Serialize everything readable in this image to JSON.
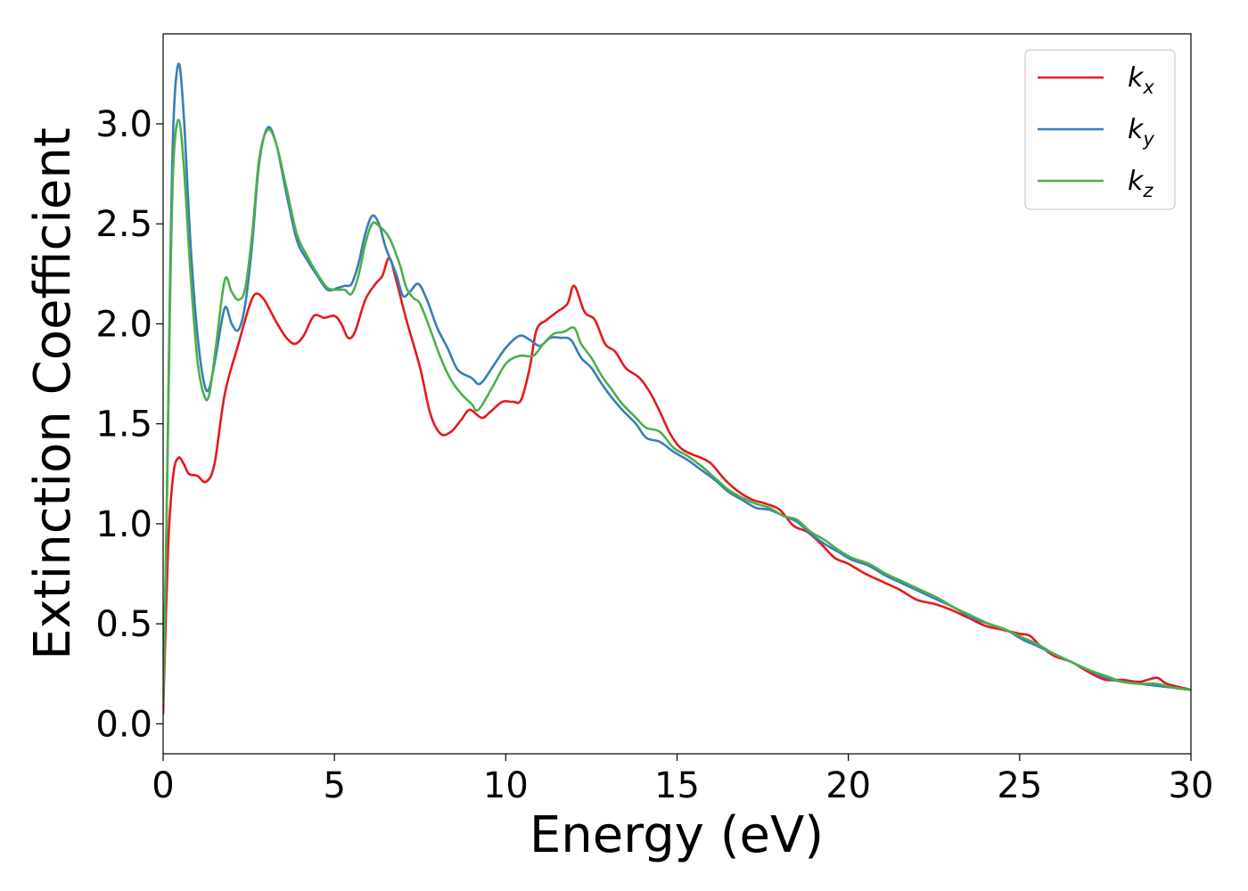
{
  "chart_data": {
    "type": "line",
    "title": "",
    "xlabel": "Energy (eV)",
    "ylabel": "Extinction Coefficient",
    "xlim": [
      0,
      30
    ],
    "ylim": [
      -0.15,
      3.45
    ],
    "xticks": [
      0,
      5,
      10,
      15,
      20,
      25,
      30
    ],
    "xtick_labels": [
      "0",
      "5",
      "10",
      "15",
      "20",
      "25",
      "30"
    ],
    "yticks": [
      0.0,
      0.5,
      1.0,
      1.5,
      2.0,
      2.5,
      3.0
    ],
    "ytick_labels": [
      "0.0",
      "0.5",
      "1.0",
      "1.5",
      "2.0",
      "2.5",
      "3.0"
    ],
    "grid": false,
    "legend_position": "top-right",
    "series": [
      {
        "name": "k",
        "subscript": "x",
        "color": "#e41a1c",
        "points": [
          [
            0,
            0.05
          ],
          [
            0.15,
            0.9
          ],
          [
            0.3,
            1.25
          ],
          [
            0.45,
            1.33
          ],
          [
            0.6,
            1.3
          ],
          [
            0.75,
            1.25
          ],
          [
            1.0,
            1.24
          ],
          [
            1.25,
            1.21
          ],
          [
            1.5,
            1.3
          ],
          [
            1.8,
            1.65
          ],
          [
            2.2,
            1.9
          ],
          [
            2.5,
            2.08
          ],
          [
            2.7,
            2.15
          ],
          [
            2.95,
            2.12
          ],
          [
            3.3,
            2.01
          ],
          [
            3.6,
            1.93
          ],
          [
            3.85,
            1.9
          ],
          [
            4.1,
            1.94
          ],
          [
            4.4,
            2.04
          ],
          [
            4.7,
            2.03
          ],
          [
            5.0,
            2.04
          ],
          [
            5.2,
            2.0
          ],
          [
            5.4,
            1.93
          ],
          [
            5.6,
            1.96
          ],
          [
            5.9,
            2.12
          ],
          [
            6.2,
            2.2
          ],
          [
            6.4,
            2.24
          ],
          [
            6.6,
            2.33
          ],
          [
            6.8,
            2.22
          ],
          [
            7.1,
            2.02
          ],
          [
            7.5,
            1.78
          ],
          [
            7.8,
            1.55
          ],
          [
            8.1,
            1.45
          ],
          [
            8.4,
            1.46
          ],
          [
            8.7,
            1.52
          ],
          [
            8.95,
            1.57
          ],
          [
            9.3,
            1.53
          ],
          [
            9.55,
            1.56
          ],
          [
            9.9,
            1.61
          ],
          [
            10.2,
            1.61
          ],
          [
            10.45,
            1.62
          ],
          [
            10.7,
            1.78
          ],
          [
            10.9,
            1.97
          ],
          [
            11.2,
            2.02
          ],
          [
            11.5,
            2.06
          ],
          [
            11.8,
            2.1
          ],
          [
            12.0,
            2.19
          ],
          [
            12.3,
            2.06
          ],
          [
            12.6,
            2.02
          ],
          [
            12.9,
            1.9
          ],
          [
            13.2,
            1.86
          ],
          [
            13.5,
            1.78
          ],
          [
            13.9,
            1.73
          ],
          [
            14.2,
            1.66
          ],
          [
            14.5,
            1.56
          ],
          [
            14.8,
            1.45
          ],
          [
            15.1,
            1.38
          ],
          [
            15.4,
            1.35
          ],
          [
            15.7,
            1.33
          ],
          [
            16.0,
            1.3
          ],
          [
            16.4,
            1.22
          ],
          [
            16.8,
            1.16
          ],
          [
            17.2,
            1.12
          ],
          [
            17.6,
            1.1
          ],
          [
            18.0,
            1.07
          ],
          [
            18.4,
            0.99
          ],
          [
            18.8,
            0.96
          ],
          [
            19.2,
            0.9
          ],
          [
            19.6,
            0.83
          ],
          [
            20.0,
            0.8
          ],
          [
            20.5,
            0.75
          ],
          [
            21.0,
            0.71
          ],
          [
            21.5,
            0.67
          ],
          [
            22.0,
            0.62
          ],
          [
            22.5,
            0.6
          ],
          [
            23.0,
            0.57
          ],
          [
            23.5,
            0.53
          ],
          [
            24.0,
            0.49
          ],
          [
            24.5,
            0.47
          ],
          [
            25.0,
            0.45
          ],
          [
            25.3,
            0.44
          ],
          [
            25.6,
            0.39
          ],
          [
            26.0,
            0.34
          ],
          [
            26.5,
            0.31
          ],
          [
            27.0,
            0.26
          ],
          [
            27.5,
            0.22
          ],
          [
            28.0,
            0.22
          ],
          [
            28.5,
            0.21
          ],
          [
            29.0,
            0.23
          ],
          [
            29.3,
            0.2
          ],
          [
            30.0,
            0.17
          ]
        ]
      },
      {
        "name": "k",
        "subscript": "y",
        "color": "#377eb8",
        "points": [
          [
            0,
            0.1
          ],
          [
            0.1,
            1.0
          ],
          [
            0.2,
            2.2
          ],
          [
            0.3,
            3.0
          ],
          [
            0.45,
            3.3
          ],
          [
            0.6,
            3.05
          ],
          [
            0.8,
            2.4
          ],
          [
            1.0,
            1.95
          ],
          [
            1.2,
            1.7
          ],
          [
            1.35,
            1.68
          ],
          [
            1.55,
            1.85
          ],
          [
            1.8,
            2.08
          ],
          [
            2.0,
            2.0
          ],
          [
            2.2,
            1.97
          ],
          [
            2.4,
            2.1
          ],
          [
            2.6,
            2.4
          ],
          [
            2.8,
            2.8
          ],
          [
            3.05,
            2.98
          ],
          [
            3.3,
            2.9
          ],
          [
            3.6,
            2.65
          ],
          [
            3.9,
            2.42
          ],
          [
            4.2,
            2.32
          ],
          [
            4.5,
            2.24
          ],
          [
            4.8,
            2.17
          ],
          [
            5.1,
            2.18
          ],
          [
            5.3,
            2.19
          ],
          [
            5.5,
            2.2
          ],
          [
            5.7,
            2.3
          ],
          [
            5.9,
            2.45
          ],
          [
            6.1,
            2.54
          ],
          [
            6.3,
            2.5
          ],
          [
            6.5,
            2.38
          ],
          [
            6.8,
            2.25
          ],
          [
            7.0,
            2.14
          ],
          [
            7.2,
            2.16
          ],
          [
            7.45,
            2.2
          ],
          [
            7.7,
            2.12
          ],
          [
            8.0,
            1.98
          ],
          [
            8.3,
            1.88
          ],
          [
            8.6,
            1.77
          ],
          [
            9.0,
            1.73
          ],
          [
            9.25,
            1.7
          ],
          [
            9.6,
            1.78
          ],
          [
            10.0,
            1.88
          ],
          [
            10.4,
            1.94
          ],
          [
            10.7,
            1.92
          ],
          [
            11.0,
            1.89
          ],
          [
            11.3,
            1.93
          ],
          [
            11.6,
            1.93
          ],
          [
            11.9,
            1.92
          ],
          [
            12.2,
            1.83
          ],
          [
            12.5,
            1.78
          ],
          [
            12.8,
            1.7
          ],
          [
            13.1,
            1.63
          ],
          [
            13.4,
            1.57
          ],
          [
            13.8,
            1.5
          ],
          [
            14.1,
            1.43
          ],
          [
            14.5,
            1.41
          ],
          [
            14.9,
            1.36
          ],
          [
            15.3,
            1.32
          ],
          [
            15.7,
            1.27
          ],
          [
            16.1,
            1.22
          ],
          [
            16.5,
            1.16
          ],
          [
            16.9,
            1.12
          ],
          [
            17.3,
            1.08
          ],
          [
            17.7,
            1.07
          ],
          [
            18.1,
            1.04
          ],
          [
            18.5,
            1.01
          ],
          [
            18.9,
            0.95
          ],
          [
            19.3,
            0.9
          ],
          [
            19.7,
            0.86
          ],
          [
            20.1,
            0.82
          ],
          [
            20.6,
            0.79
          ],
          [
            21.1,
            0.74
          ],
          [
            21.6,
            0.7
          ],
          [
            22.1,
            0.66
          ],
          [
            22.6,
            0.62
          ],
          [
            23.1,
            0.58
          ],
          [
            23.6,
            0.53
          ],
          [
            24.1,
            0.5
          ],
          [
            24.6,
            0.47
          ],
          [
            25.1,
            0.42
          ],
          [
            25.5,
            0.39
          ],
          [
            26.0,
            0.35
          ],
          [
            26.5,
            0.31
          ],
          [
            27.0,
            0.27
          ],
          [
            27.5,
            0.23
          ],
          [
            28.0,
            0.21
          ],
          [
            28.5,
            0.2
          ],
          [
            29.0,
            0.19
          ],
          [
            29.5,
            0.18
          ],
          [
            30.0,
            0.17
          ]
        ]
      },
      {
        "name": "k",
        "subscript": "z",
        "color": "#4daf4a",
        "points": [
          [
            0,
            0.1
          ],
          [
            0.1,
            1.0
          ],
          [
            0.2,
            2.1
          ],
          [
            0.3,
            2.8
          ],
          [
            0.45,
            3.02
          ],
          [
            0.6,
            2.8
          ],
          [
            0.8,
            2.25
          ],
          [
            1.0,
            1.82
          ],
          [
            1.2,
            1.64
          ],
          [
            1.35,
            1.65
          ],
          [
            1.55,
            1.9
          ],
          [
            1.8,
            2.22
          ],
          [
            2.0,
            2.16
          ],
          [
            2.2,
            2.12
          ],
          [
            2.4,
            2.18
          ],
          [
            2.6,
            2.45
          ],
          [
            2.8,
            2.82
          ],
          [
            3.05,
            2.97
          ],
          [
            3.3,
            2.9
          ],
          [
            3.6,
            2.68
          ],
          [
            3.9,
            2.45
          ],
          [
            4.2,
            2.34
          ],
          [
            4.5,
            2.25
          ],
          [
            4.8,
            2.18
          ],
          [
            5.1,
            2.17
          ],
          [
            5.3,
            2.17
          ],
          [
            5.5,
            2.15
          ],
          [
            5.7,
            2.24
          ],
          [
            5.9,
            2.4
          ],
          [
            6.1,
            2.5
          ],
          [
            6.3,
            2.49
          ],
          [
            6.6,
            2.43
          ],
          [
            6.9,
            2.3
          ],
          [
            7.1,
            2.18
          ],
          [
            7.3,
            2.13
          ],
          [
            7.5,
            2.1
          ],
          [
            7.8,
            1.97
          ],
          [
            8.1,
            1.83
          ],
          [
            8.4,
            1.72
          ],
          [
            8.7,
            1.65
          ],
          [
            9.0,
            1.6
          ],
          [
            9.2,
            1.57
          ],
          [
            9.6,
            1.68
          ],
          [
            10.0,
            1.8
          ],
          [
            10.4,
            1.84
          ],
          [
            10.8,
            1.84
          ],
          [
            11.1,
            1.9
          ],
          [
            11.4,
            1.95
          ],
          [
            11.7,
            1.96
          ],
          [
            12.0,
            1.98
          ],
          [
            12.2,
            1.9
          ],
          [
            12.5,
            1.83
          ],
          [
            12.8,
            1.74
          ],
          [
            13.1,
            1.67
          ],
          [
            13.4,
            1.6
          ],
          [
            13.8,
            1.53
          ],
          [
            14.1,
            1.48
          ],
          [
            14.5,
            1.46
          ],
          [
            14.9,
            1.38
          ],
          [
            15.3,
            1.34
          ],
          [
            15.7,
            1.29
          ],
          [
            16.1,
            1.23
          ],
          [
            16.5,
            1.17
          ],
          [
            16.9,
            1.13
          ],
          [
            17.3,
            1.1
          ],
          [
            17.7,
            1.08
          ],
          [
            18.1,
            1.04
          ],
          [
            18.5,
            1.02
          ],
          [
            18.9,
            0.96
          ],
          [
            19.3,
            0.92
          ],
          [
            19.7,
            0.87
          ],
          [
            20.1,
            0.83
          ],
          [
            20.6,
            0.8
          ],
          [
            21.1,
            0.75
          ],
          [
            21.6,
            0.71
          ],
          [
            22.1,
            0.67
          ],
          [
            22.6,
            0.63
          ],
          [
            23.1,
            0.58
          ],
          [
            23.6,
            0.54
          ],
          [
            24.1,
            0.5
          ],
          [
            24.6,
            0.47
          ],
          [
            25.1,
            0.43
          ],
          [
            25.5,
            0.4
          ],
          [
            26.0,
            0.35
          ],
          [
            26.5,
            0.31
          ],
          [
            27.0,
            0.27
          ],
          [
            27.5,
            0.24
          ],
          [
            28.0,
            0.21
          ],
          [
            28.5,
            0.2
          ],
          [
            29.0,
            0.2
          ],
          [
            29.5,
            0.18
          ],
          [
            30.0,
            0.17
          ]
        ]
      }
    ]
  }
}
